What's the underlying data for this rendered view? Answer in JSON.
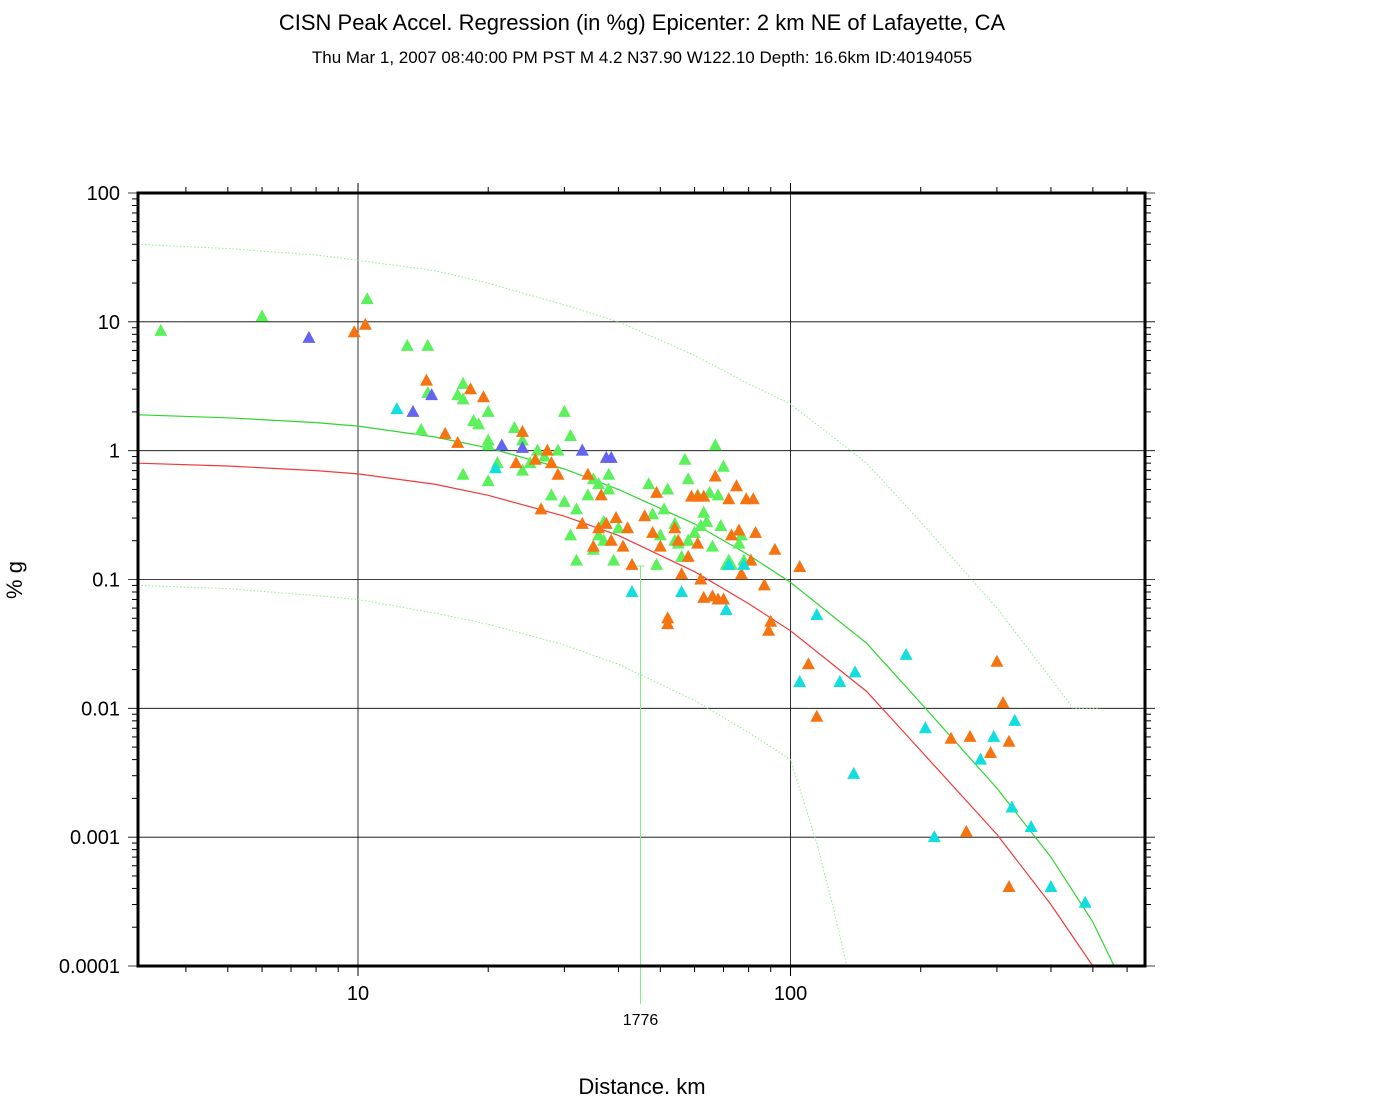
{
  "chart_data": {
    "type": "scatter",
    "title": "CISN Peak Accel. Regression (in %g) Epicenter: 2 km NE of  Lafayette, CA",
    "subtitle": "Thu Mar  1, 2007 08:40:00 PM PST   M 4.2   N37.90 W122.10   Depth: 16.6km   ID:40194055",
    "xlabel": "Distance. km",
    "ylabel": "% g",
    "x_scale": "log",
    "y_scale": "log",
    "xlim": [
      3.1,
      660
    ],
    "ylim": [
      0.0001,
      100
    ],
    "x_ticks": [
      10,
      100
    ],
    "y_ticks": [
      0.0001,
      0.001,
      0.01,
      0.1,
      1,
      10,
      100
    ],
    "x_tick_labels": [
      "10",
      "100"
    ],
    "y_tick_labels": [
      "0.0001",
      "0.001",
      "0.01",
      "0.1",
      "1",
      "10",
      "100"
    ],
    "grid": true,
    "marker_line": {
      "x": 45,
      "label": "1776",
      "color": "#7cf07c"
    },
    "colors": {
      "green": "#5cf05c",
      "orange": "#f57310",
      "cyan": "#12dede",
      "blue": "#6464f0",
      "curve_green": "#2fd62f",
      "curve_red": "#ef3a3a",
      "curve_dotted": "#8cf08c"
    },
    "curves": [
      {
        "style": "solid",
        "color_key": "curve_green",
        "x": [
          3.1,
          5,
          8,
          10,
          15,
          20,
          30,
          40,
          60,
          80,
          100,
          150,
          200,
          300,
          400,
          500,
          560
        ],
        "y": [
          1.9,
          1.8,
          1.65,
          1.55,
          1.28,
          1.05,
          0.72,
          0.5,
          0.27,
          0.155,
          0.095,
          0.032,
          0.011,
          0.0024,
          0.0007,
          0.00022,
          0.0001
        ]
      },
      {
        "style": "solid",
        "color_key": "curve_red",
        "x": [
          3.1,
          5,
          8,
          10,
          15,
          20,
          30,
          40,
          60,
          80,
          100,
          150,
          200,
          300,
          400,
          500
        ],
        "y": [
          0.8,
          0.76,
          0.7,
          0.66,
          0.55,
          0.45,
          0.31,
          0.22,
          0.115,
          0.065,
          0.04,
          0.0135,
          0.0047,
          0.00105,
          0.0003,
          0.0001
        ]
      },
      {
        "style": "dotted",
        "color_key": "curve_dotted",
        "x": [
          3.1,
          5,
          8,
          10,
          15,
          20,
          30,
          40,
          60,
          80,
          100,
          150,
          200,
          300,
          400,
          450,
          520
        ],
        "y": [
          40,
          37,
          33,
          30,
          25,
          20,
          13.5,
          10,
          5.5,
          3.3,
          2.3,
          0.8,
          0.28,
          0.06,
          0.017,
          0.01,
          0.01
        ]
      },
      {
        "style": "dotted",
        "color_key": "curve_dotted",
        "x": [
          3.1,
          5,
          8,
          10,
          15,
          20,
          30,
          40,
          60,
          80,
          100,
          115,
          125,
          135
        ],
        "y": [
          0.09,
          0.085,
          0.075,
          0.07,
          0.055,
          0.045,
          0.031,
          0.022,
          0.0115,
          0.0065,
          0.004,
          0.0009,
          0.0003,
          0.0001
        ]
      }
    ],
    "series": [
      {
        "color_key": "green",
        "points": [
          [
            3.5,
            8.5
          ],
          [
            6,
            11
          ],
          [
            10.5,
            15
          ],
          [
            13,
            6.5
          ],
          [
            14.5,
            6.5
          ],
          [
            14.5,
            2.8
          ],
          [
            14,
            1.45
          ],
          [
            17,
            2.7
          ],
          [
            17.5,
            3.3
          ],
          [
            17.5,
            2.5
          ],
          [
            17.5,
            0.65
          ],
          [
            18.5,
            1.7
          ],
          [
            19,
            1.6
          ],
          [
            20,
            2.0
          ],
          [
            20,
            1.2
          ],
          [
            20,
            1.1
          ],
          [
            20,
            0.58
          ],
          [
            21,
            0.8
          ],
          [
            23,
            1.5
          ],
          [
            24,
            1.2
          ],
          [
            24,
            0.7
          ],
          [
            25,
            0.8
          ],
          [
            26,
            1.0
          ],
          [
            27,
            0.9
          ],
          [
            28,
            0.45
          ],
          [
            29,
            1.0
          ],
          [
            30,
            2.0
          ],
          [
            30,
            0.4
          ],
          [
            31,
            0.22
          ],
          [
            31,
            1.3
          ],
          [
            32,
            0.35
          ],
          [
            32,
            0.14
          ],
          [
            33,
            1.0
          ],
          [
            34,
            0.45
          ],
          [
            35,
            0.6
          ],
          [
            35,
            0.17
          ],
          [
            36,
            0.55
          ],
          [
            36,
            0.22
          ],
          [
            37,
            0.28
          ],
          [
            38,
            0.65
          ],
          [
            38,
            0.5
          ],
          [
            37,
            0.2
          ],
          [
            39,
            0.14
          ],
          [
            40,
            0.25
          ],
          [
            47,
            0.55
          ],
          [
            48,
            0.32
          ],
          [
            49,
            0.13
          ],
          [
            50,
            0.22
          ],
          [
            51,
            0.35
          ],
          [
            52,
            0.5
          ],
          [
            54,
            0.27
          ],
          [
            54,
            0.2
          ],
          [
            55,
            0.19
          ],
          [
            56,
            0.15
          ],
          [
            57,
            0.85
          ],
          [
            58,
            0.6
          ],
          [
            58,
            0.2
          ],
          [
            60,
            0.23
          ],
          [
            61,
            0.45
          ],
          [
            62,
            0.26
          ],
          [
            63,
            0.33
          ],
          [
            64,
            0.28
          ],
          [
            65,
            0.47
          ],
          [
            66,
            0.18
          ],
          [
            67,
            1.1
          ],
          [
            68,
            0.45
          ],
          [
            69,
            0.26
          ],
          [
            70,
            0.75
          ],
          [
            71,
            0.13
          ],
          [
            72,
            0.14
          ],
          [
            73,
            0.13
          ],
          [
            76,
            0.19
          ],
          [
            77,
            0.22
          ],
          [
            78,
            0.14
          ]
        ]
      },
      {
        "color_key": "orange",
        "points": [
          [
            9.8,
            8.3
          ],
          [
            10.4,
            9.5
          ],
          [
            14.4,
            3.5
          ],
          [
            15.9,
            1.35
          ],
          [
            17,
            1.15
          ],
          [
            18.2,
            3.0
          ],
          [
            19.5,
            2.6
          ],
          [
            23.2,
            0.8
          ],
          [
            24,
            1.4
          ],
          [
            25.7,
            0.85
          ],
          [
            26.5,
            0.35
          ],
          [
            27.4,
            1.0
          ],
          [
            28,
            0.8
          ],
          [
            29,
            0.65
          ],
          [
            33,
            0.27
          ],
          [
            34,
            0.65
          ],
          [
            35,
            0.18
          ],
          [
            36,
            0.25
          ],
          [
            36.5,
            0.45
          ],
          [
            37.5,
            0.27
          ],
          [
            38.5,
            0.2
          ],
          [
            39.5,
            0.3
          ],
          [
            41,
            0.18
          ],
          [
            42,
            0.25
          ],
          [
            43,
            0.13
          ],
          [
            46,
            0.31
          ],
          [
            48,
            0.23
          ],
          [
            49,
            0.47
          ],
          [
            50,
            0.18
          ],
          [
            52,
            0.05
          ],
          [
            52,
            0.045
          ],
          [
            54,
            0.25
          ],
          [
            55,
            0.2
          ],
          [
            56,
            0.11
          ],
          [
            58,
            0.15
          ],
          [
            59,
            0.44
          ],
          [
            61,
            0.44
          ],
          [
            61,
            0.19
          ],
          [
            62,
            0.1
          ],
          [
            63,
            0.072
          ],
          [
            63,
            0.44
          ],
          [
            66,
            0.074
          ],
          [
            67,
            0.63
          ],
          [
            68,
            0.07
          ],
          [
            70,
            0.07
          ],
          [
            72,
            0.42
          ],
          [
            73,
            0.22
          ],
          [
            75,
            0.53
          ],
          [
            76,
            0.24
          ],
          [
            77,
            0.11
          ],
          [
            79,
            0.42
          ],
          [
            81,
            0.14
          ],
          [
            82,
            0.42
          ],
          [
            83,
            0.23
          ],
          [
            87,
            0.09
          ],
          [
            89,
            0.04
          ],
          [
            90,
            0.047
          ],
          [
            92,
            0.17
          ],
          [
            105,
            0.125
          ],
          [
            110,
            0.022
          ],
          [
            115,
            0.0086
          ],
          [
            235,
            0.0058
          ],
          [
            255,
            0.0011
          ],
          [
            260,
            0.006
          ],
          [
            290,
            0.0045
          ],
          [
            300,
            0.023
          ],
          [
            310,
            0.011
          ],
          [
            320,
            0.0055
          ],
          [
            320,
            0.00041
          ]
        ]
      },
      {
        "color_key": "cyan",
        "points": [
          [
            12.3,
            2.1
          ],
          [
            20.8,
            0.73
          ],
          [
            43,
            0.08
          ],
          [
            56,
            0.08
          ],
          [
            71,
            0.058
          ],
          [
            72,
            0.13
          ],
          [
            78,
            0.13
          ],
          [
            105,
            0.016
          ],
          [
            115,
            0.053
          ],
          [
            130,
            0.016
          ],
          [
            140,
            0.0031
          ],
          [
            141,
            0.019
          ],
          [
            185,
            0.026
          ],
          [
            205,
            0.007
          ],
          [
            215,
            0.001
          ],
          [
            275,
            0.004
          ],
          [
            295,
            0.006
          ],
          [
            325,
            0.0017
          ],
          [
            330,
            0.008
          ],
          [
            360,
            0.0012
          ],
          [
            400,
            0.00041
          ],
          [
            480,
            0.00031
          ]
        ]
      },
      {
        "color_key": "blue",
        "points": [
          [
            7.7,
            7.5
          ],
          [
            13.4,
            2.0
          ],
          [
            14.8,
            2.7
          ],
          [
            21.5,
            1.1
          ],
          [
            24,
            1.05
          ],
          [
            33,
            1.0
          ],
          [
            37.5,
            0.88
          ],
          [
            38.5,
            0.88
          ]
        ]
      }
    ]
  }
}
